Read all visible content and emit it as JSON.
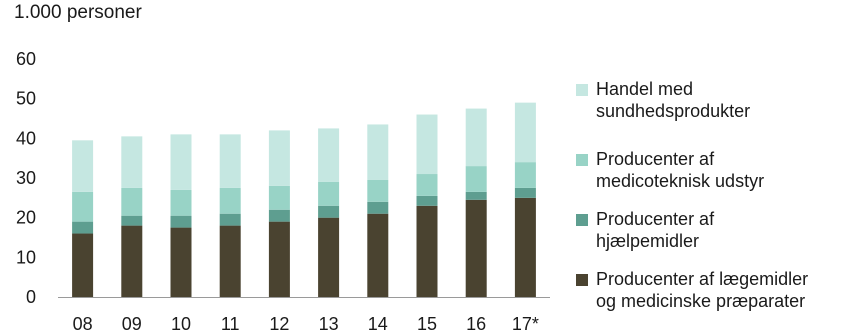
{
  "chart_data": {
    "type": "bar",
    "stacked": true,
    "unit_label": "1.000 personer",
    "categories": [
      "08",
      "09",
      "10",
      "11",
      "12",
      "13",
      "14",
      "15",
      "16",
      "17*"
    ],
    "ylim": [
      0,
      60
    ],
    "yticks": [
      "0",
      "10",
      "20",
      "30",
      "40",
      "50",
      "60"
    ],
    "grid": false,
    "legend_position": "right",
    "series": [
      {
        "name": "Producenter af lægemidler og medicinske præparater",
        "color": "#4a4330",
        "values": [
          16,
          18,
          17.5,
          18,
          19,
          20,
          21,
          23,
          24.5,
          25
        ]
      },
      {
        "name": "Producenter af hjælpemidler",
        "color": "#5e9e90",
        "values": [
          3,
          2.5,
          3,
          3,
          3,
          3,
          3,
          2.5,
          2,
          2.5
        ]
      },
      {
        "name": "Producenter af medicoteknisk udstyr",
        "color": "#98d3c6",
        "values": [
          7.5,
          7,
          6.5,
          6.5,
          6,
          6,
          5.5,
          5.5,
          6.5,
          6.5
        ]
      },
      {
        "name": "Handel med sundhedsprodukter",
        "color": "#c5e7e1",
        "values": [
          13,
          13,
          14,
          13.5,
          14,
          13.5,
          14,
          15,
          14.5,
          15
        ]
      }
    ],
    "legend": [
      {
        "line1": "Handel med",
        "line2": "sundhedsprodukter",
        "color": "#c5e7e1"
      },
      {
        "line1": "Producenter af",
        "line2": "medicoteknisk udstyr",
        "color": "#98d3c6"
      },
      {
        "line1": "Producenter af",
        "line2": "hjælpemidler",
        "color": "#5e9e90"
      },
      {
        "line1": "Producenter af lægemidler",
        "line2": "og medicinske præparater",
        "color": "#4a4330"
      }
    ]
  }
}
